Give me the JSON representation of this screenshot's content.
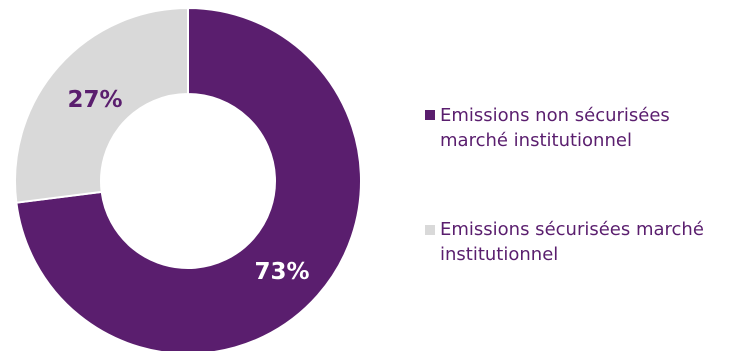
{
  "chart_data": {
    "type": "pie",
    "donut": true,
    "categories": [
      "Emissions non sécurisées marché institutionnel",
      "Emissions sécurisées marché institutionnel"
    ],
    "values": [
      73,
      27
    ],
    "labels": [
      "73%",
      "27%"
    ],
    "colors": [
      "#5a1e6e",
      "#d9d9d9"
    ],
    "label_colors": [
      "#ffffff",
      "#5a1e6e"
    ],
    "legend": {
      "position": "right",
      "entries": [
        {
          "label": "Emissions non sécurisées marché institutionnel",
          "line1": "Emissions non sécurisées",
          "line2": "marché institutionnel",
          "color": "#5a1e6e"
        },
        {
          "label": "Emissions sécurisées marché institutionnel",
          "line1": "Emissions sécurisées marché",
          "line2": "institutionnel",
          "color": "#d9d9d9"
        }
      ]
    }
  }
}
